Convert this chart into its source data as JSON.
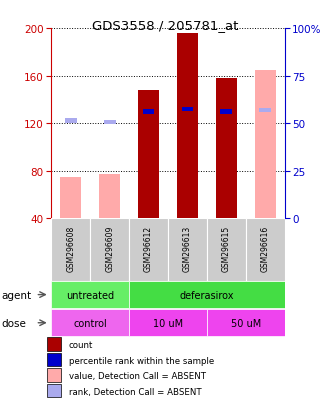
{
  "title": "GDS3558 / 205781_at",
  "samples": [
    "GSM296608",
    "GSM296609",
    "GSM296612",
    "GSM296613",
    "GSM296615",
    "GSM296616"
  ],
  "count_values": [
    null,
    null,
    148,
    196,
    158,
    null
  ],
  "count_color": "#aa0000",
  "rank_values": [
    null,
    null,
    130,
    132,
    130,
    null
  ],
  "rank_color": "#0000cc",
  "absent_value_values": [
    75,
    77,
    null,
    null,
    null,
    165
  ],
  "absent_value_color": "#ffaaaa",
  "absent_rank_values": [
    122,
    121,
    null,
    null,
    null,
    131
  ],
  "absent_rank_color": "#aaaaee",
  "ylim_left": [
    40,
    200
  ],
  "ylim_right": [
    0,
    100
  ],
  "yticks_left": [
    40,
    80,
    120,
    160,
    200
  ],
  "yticks_right": [
    0,
    25,
    50,
    75,
    100
  ],
  "bar_width": 0.55,
  "legend_items": [
    {
      "label": "count",
      "color": "#aa0000"
    },
    {
      "label": "percentile rank within the sample",
      "color": "#0000cc"
    },
    {
      "label": "value, Detection Call = ABSENT",
      "color": "#ffaaaa"
    },
    {
      "label": "rank, Detection Call = ABSENT",
      "color": "#aaaaee"
    }
  ],
  "left_axis_color": "#cc0000",
  "right_axis_color": "#0000cc",
  "sample_box_color": "#cccccc",
  "agent_groups": [
    {
      "label": "untreated",
      "start": 0,
      "end": 2,
      "color": "#66ee66"
    },
    {
      "label": "deferasirox",
      "start": 2,
      "end": 6,
      "color": "#44dd44"
    }
  ],
  "dose_groups": [
    {
      "label": "control",
      "start": 0,
      "end": 2,
      "color": "#ee66ee"
    },
    {
      "label": "10 uM",
      "start": 2,
      "end": 4,
      "color": "#ee44ee"
    },
    {
      "label": "50 uM",
      "start": 4,
      "end": 6,
      "color": "#ee44ee"
    }
  ]
}
